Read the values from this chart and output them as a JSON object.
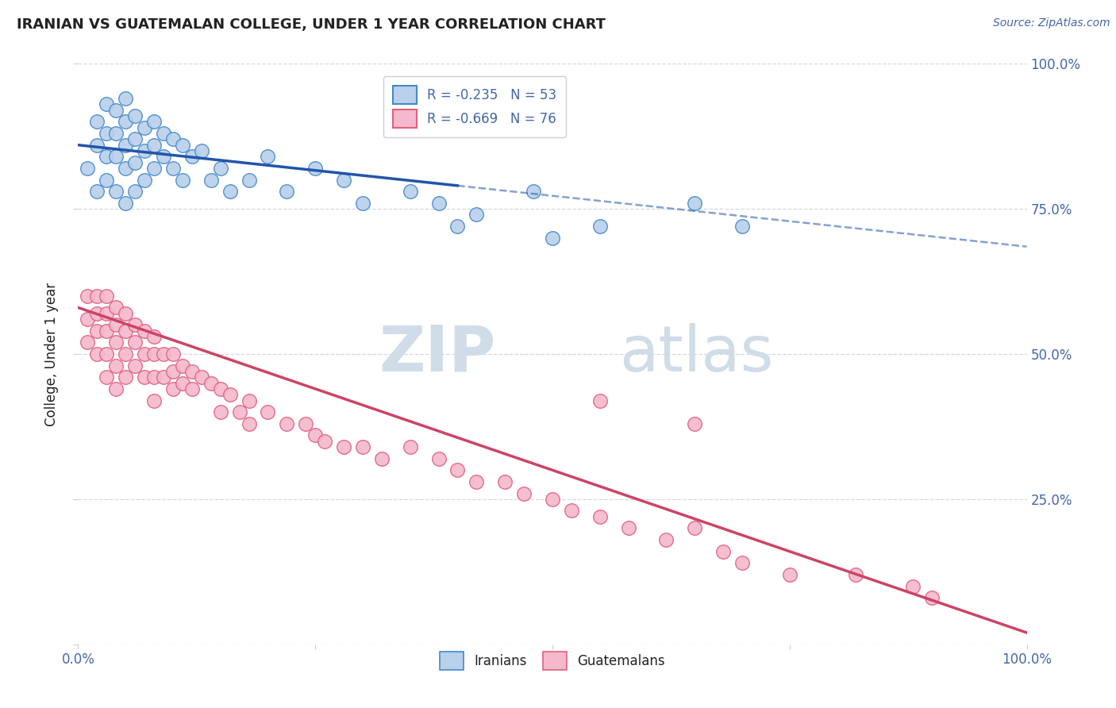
{
  "title": "IRANIAN VS GUATEMALAN COLLEGE, UNDER 1 YEAR CORRELATION CHART",
  "source_text": "Source: ZipAtlas.com",
  "ylabel": "College, Under 1 year",
  "xlim": [
    0.0,
    1.0
  ],
  "ylim": [
    0.0,
    1.0
  ],
  "legend_R_iranian": "R = -0.235",
  "legend_N_iranian": "N = 53",
  "legend_R_guatemalan": "R = -0.669",
  "legend_N_guatemalan": "N = 76",
  "legend_label_iranian": "Iranians",
  "legend_label_guatemalan": "Guatemalans",
  "color_iranian_fill": "#b8d0ea",
  "color_iranian_edge": "#4488cc",
  "color_iranian_line": "#2255aa",
  "color_guatemalan_fill": "#f5b8cc",
  "color_guatemalan_edge": "#e06080",
  "color_guatemalan_line": "#cc4466",
  "watermark_color": "#d0dce8",
  "background_color": "#ffffff",
  "grid_color": "#c8d0d8",
  "title_color": "#222222",
  "axis_label_color": "#4466aa",
  "right_axis_color": "#4466aa",
  "iranian_scatter_x": [
    0.01,
    0.02,
    0.02,
    0.02,
    0.03,
    0.03,
    0.03,
    0.03,
    0.04,
    0.04,
    0.04,
    0.04,
    0.05,
    0.05,
    0.05,
    0.05,
    0.05,
    0.06,
    0.06,
    0.06,
    0.06,
    0.07,
    0.07,
    0.07,
    0.08,
    0.08,
    0.08,
    0.09,
    0.09,
    0.1,
    0.1,
    0.11,
    0.11,
    0.12,
    0.13,
    0.14,
    0.15,
    0.16,
    0.18,
    0.2,
    0.22,
    0.25,
    0.28,
    0.3,
    0.35,
    0.38,
    0.4,
    0.42,
    0.48,
    0.5,
    0.55,
    0.65,
    0.7
  ],
  "iranian_scatter_y": [
    0.82,
    0.9,
    0.86,
    0.78,
    0.93,
    0.88,
    0.84,
    0.8,
    0.92,
    0.88,
    0.84,
    0.78,
    0.94,
    0.9,
    0.86,
    0.82,
    0.76,
    0.91,
    0.87,
    0.83,
    0.78,
    0.89,
    0.85,
    0.8,
    0.9,
    0.86,
    0.82,
    0.88,
    0.84,
    0.87,
    0.82,
    0.86,
    0.8,
    0.84,
    0.85,
    0.8,
    0.82,
    0.78,
    0.8,
    0.84,
    0.78,
    0.82,
    0.8,
    0.76,
    0.78,
    0.76,
    0.72,
    0.74,
    0.78,
    0.7,
    0.72,
    0.76,
    0.72
  ],
  "guatemalan_scatter_x": [
    0.01,
    0.01,
    0.01,
    0.02,
    0.02,
    0.02,
    0.02,
    0.03,
    0.03,
    0.03,
    0.03,
    0.03,
    0.04,
    0.04,
    0.04,
    0.04,
    0.04,
    0.05,
    0.05,
    0.05,
    0.05,
    0.06,
    0.06,
    0.06,
    0.07,
    0.07,
    0.07,
    0.08,
    0.08,
    0.08,
    0.08,
    0.09,
    0.09,
    0.1,
    0.1,
    0.1,
    0.11,
    0.11,
    0.12,
    0.12,
    0.13,
    0.14,
    0.15,
    0.15,
    0.16,
    0.17,
    0.18,
    0.18,
    0.2,
    0.22,
    0.24,
    0.25,
    0.26,
    0.28,
    0.3,
    0.32,
    0.35,
    0.38,
    0.4,
    0.42,
    0.45,
    0.47,
    0.5,
    0.52,
    0.55,
    0.58,
    0.62,
    0.65,
    0.68,
    0.7,
    0.75,
    0.82,
    0.88,
    0.9,
    0.55,
    0.65
  ],
  "guatemalan_scatter_y": [
    0.6,
    0.56,
    0.52,
    0.6,
    0.57,
    0.54,
    0.5,
    0.6,
    0.57,
    0.54,
    0.5,
    0.46,
    0.58,
    0.55,
    0.52,
    0.48,
    0.44,
    0.57,
    0.54,
    0.5,
    0.46,
    0.55,
    0.52,
    0.48,
    0.54,
    0.5,
    0.46,
    0.53,
    0.5,
    0.46,
    0.42,
    0.5,
    0.46,
    0.5,
    0.47,
    0.44,
    0.48,
    0.45,
    0.47,
    0.44,
    0.46,
    0.45,
    0.44,
    0.4,
    0.43,
    0.4,
    0.42,
    0.38,
    0.4,
    0.38,
    0.38,
    0.36,
    0.35,
    0.34,
    0.34,
    0.32,
    0.34,
    0.32,
    0.3,
    0.28,
    0.28,
    0.26,
    0.25,
    0.23,
    0.22,
    0.2,
    0.18,
    0.2,
    0.16,
    0.14,
    0.12,
    0.12,
    0.1,
    0.08,
    0.42,
    0.38
  ],
  "iran_line_x0": 0.0,
  "iran_line_y0": 0.86,
  "iran_line_x1": 0.4,
  "iran_line_y1": 0.79,
  "iran_line_solid_end": 0.4,
  "iran_line_dash_end": 1.0,
  "guat_line_x0": 0.0,
  "guat_line_y0": 0.58,
  "guat_line_x1": 1.0,
  "guat_line_y1": 0.02
}
